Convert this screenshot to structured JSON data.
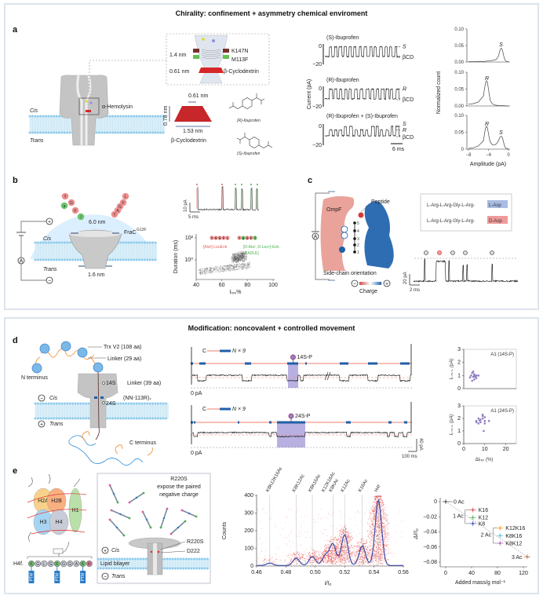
{
  "panel_top": {
    "title": "Chirality: confinement + asymmetry chemical enviroment"
  },
  "panel_bottom": {
    "title": "Modification: noncovalent + controlled movement"
  },
  "colors": {
    "pore_gray": "#b9b9b9",
    "membrane": "#d8eef8",
    "bead": "#8fcbec",
    "red": "#d62728",
    "blue_block": "#1f5fa8",
    "purple": "#9b8fd6",
    "trace_red_line": "#f07c6c"
  },
  "a": {
    "label": "a",
    "cis": "Cis",
    "trans": "Trans",
    "hemolysin": "α-Hemolysin",
    "inset": {
      "d1": "1.4 nm",
      "k147n": "K147N",
      "m113f": "M113F",
      "d2": "0.61 nm",
      "bcd": "β-Cyclodextrin"
    },
    "bcd": {
      "top": "0.61 nm",
      "height": "0.78 nm",
      "bottom": "1.53 nm",
      "name": "β-Cyclodextrin"
    },
    "r_ibu": "(R)-Ibuprofen",
    "s_ibu": "(S)-Ibuprofen",
    "traces": {
      "ylabel": "Current (pA)",
      "tick0": "0",
      "tick20": "−20",
      "scale": "6 ms",
      "rows": [
        {
          "title": "(S)-Ibuprofen",
          "levels": [
            "S",
            "βCD"
          ]
        },
        {
          "title": "(R)-Ibuprofen",
          "levels": [
            "R",
            "βCD"
          ]
        },
        {
          "title": "(R)-Ibuprofen + (S)-Ibuprofen",
          "levels": [
            "S",
            "R",
            "βCD"
          ]
        }
      ]
    }
  },
  "b": {
    "label": "b",
    "d_top": "6.0 nm",
    "d_bottom": "1.6 nm",
    "pore": "FraC",
    "pore_sup": "G13F",
    "cis": "Cis",
    "trans": "Trans",
    "plus": "+",
    "minus": "−",
    "ammeter": "A",
    "peptide_left": [
      "Y",
      "a",
      "G",
      "F",
      "l"
    ],
    "peptide_right": [
      "Y",
      "A",
      "G",
      "F",
      "L"
    ],
    "trace_scale_y": "10 pA",
    "trace_scale_x": "5 ms"
  },
  "c": {
    "label": "c",
    "ompf": "OmpF",
    "peptide": "Peptide",
    "side_chain": "Side-chain orientation",
    "charge": "Charge",
    "plus": "+",
    "minus": "−",
    "ammeter": "A",
    "chain_positions": [
      "1",
      "2",
      "3",
      "4",
      "5"
    ],
    "legend": {
      "prefix": "L-Arg-L-Arg-Gly-L-Arg-",
      "l_asp": "L-Asp",
      "d_asp": "D-Asp",
      "l_color": "#a9bde3",
      "d_color": "#ef9a9a"
    },
    "scale_y": "20 pA",
    "scale_x": "2 ms"
  },
  "d": {
    "label": "d",
    "trx": "Trx V2 (108 aa)",
    "linker29": "Linker (29 aa)",
    "n_term": "N terminus",
    "s14": "14S",
    "linker39": "Linker (39 aa)",
    "pore": "(NN-113R)₇",
    "s24": "24S",
    "cis": "Cis",
    "trans": "Trans",
    "plus": "+",
    "minus": "−",
    "c_term": "C terminus",
    "traces": [
      {
        "construct_c": "C",
        "construct_n": "N × 9",
        "site": "14S-P",
        "zero": "0 pA"
      },
      {
        "construct_c": "C",
        "construct_n": "N × 9",
        "site": "24S-P",
        "zero": "0 pA"
      }
    ],
    "scale_y": "40 pA",
    "scale_x": "100 ms"
  },
  "e": {
    "label": "e",
    "histones": [
      "H2A",
      "H2B",
      "H3",
      "H4",
      "H1"
    ],
    "h4f": "H4f.",
    "sequence": [
      "K",
      "G",
      "L",
      "G",
      "K",
      "G",
      "G",
      "A",
      "K",
      "R"
    ],
    "ptm": "PTM",
    "box_text": [
      "R220S",
      "expose the paired",
      "negative charge"
    ],
    "cis": "Cis",
    "trans": "Trans",
    "bilayer": "Lipid bilayer",
    "plus": "+",
    "minus": "−",
    "r220s": "R220S",
    "d222": "D222"
  },
  "chart_data": [
    {
      "id": "a-histograms",
      "type": "line",
      "xlabel": "Amplitude (pA)",
      "ylabel": "Normalized count",
      "xlim": [
        -8,
        0
      ],
      "xticks": [
        "−8",
        "−4",
        "0"
      ],
      "x": [
        -8,
        -7,
        -6,
        -5,
        -4.8,
        -4.6,
        -4.4,
        -4.2,
        -4,
        -3.8,
        -3.6,
        -3.2,
        -2.8,
        -2.4,
        -2,
        -1.8,
        -1.6,
        -1.4,
        -1.2,
        -1,
        -0.8,
        -0.6,
        -0.4,
        0
      ],
      "panels": [
        {
          "yticks": [
            "0.10",
            "0.05",
            "0.00"
          ],
          "ylim": [
            0,
            0.1
          ],
          "peaks": [
            {
              "label": "S",
              "x": -1.5
            }
          ],
          "values": [
            0.001,
            0.001,
            0.002,
            0.002,
            0.002,
            0.002,
            0.003,
            0.003,
            0.003,
            0.003,
            0.004,
            0.005,
            0.006,
            0.008,
            0.018,
            0.03,
            0.04,
            0.042,
            0.035,
            0.022,
            0.01,
            0.004,
            0.002,
            0.001
          ]
        },
        {
          "yticks": [
            "0.10",
            "0.05",
            "0.00"
          ],
          "ylim": [
            0,
            0.1
          ],
          "peaks": [
            {
              "label": "R",
              "x": -4.3
            }
          ],
          "values": [
            0.005,
            0.007,
            0.012,
            0.03,
            0.05,
            0.068,
            0.075,
            0.07,
            0.05,
            0.03,
            0.015,
            0.006,
            0.003,
            0.002,
            0.001,
            0.001,
            0.001,
            0.001,
            0.001,
            0.001,
            0.001,
            0,
            0,
            0
          ]
        },
        {
          "yticks": [
            "0.10",
            "0.05",
            "0"
          ],
          "ylim": [
            0,
            0.1
          ],
          "peaks": [
            {
              "label": "R",
              "x": -4.3
            },
            {
              "label": "S",
              "x": -1.5
            }
          ],
          "values": [
            0.002,
            0.004,
            0.01,
            0.025,
            0.045,
            0.062,
            0.068,
            0.063,
            0.046,
            0.03,
            0.02,
            0.013,
            0.012,
            0.016,
            0.025,
            0.032,
            0.037,
            0.038,
            0.033,
            0.022,
            0.01,
            0.004,
            0.002,
            0.001
          ]
        }
      ]
    },
    {
      "id": "b-scatter",
      "type": "scatter",
      "xlabel": "Iᵣₑₛ%",
      "ylabel": "Duration (ms)",
      "xlim": [
        40,
        100
      ],
      "xticks": [
        "40",
        "60",
        "80",
        "100"
      ],
      "yscale": "log",
      "yticks": [
        "10²",
        "10⁰"
      ],
      "clusters": [
        {
          "label": "[Ala²]-LeuEnk",
          "peptide": "YAGFL",
          "x": 71,
          "y": 1.5,
          "color": "#e06060"
        },
        {
          "label": "[D-Ala², D-Leu⁵]-Enk",
          "label2": "(DADLE)",
          "peptide": "YaGFl",
          "x": 76,
          "y": 2,
          "color": "#4caf50"
        }
      ]
    },
    {
      "id": "d-scatter",
      "type": "scatter",
      "xlabel": "ΔIᵣₑₛ (%)",
      "ylabel": "Iᵣ.ₘ.ₛ. (pA)",
      "xlim": [
        0,
        25
      ],
      "ylim": [
        0,
        3
      ],
      "xticks": [
        "0",
        "10",
        "20"
      ],
      "yticks": [
        "0",
        "1",
        "2",
        "3"
      ],
      "color": "#8e7cc3",
      "panels": [
        {
          "title": "A1 (14S-P)",
          "points": [
            [
              4,
              1.2
            ],
            [
              4.5,
              0.9
            ],
            [
              5,
              1.0
            ],
            [
              3,
              0.85
            ],
            [
              6,
              1.0
            ],
            [
              5,
              0.7
            ],
            [
              4,
              0.6
            ],
            [
              7,
              1.0
            ],
            [
              6,
              0.8
            ],
            [
              4.5,
              1.3
            ],
            [
              5,
              1.1
            ],
            [
              3.5,
              1.0
            ],
            [
              5.5,
              0.9
            ]
          ]
        },
        {
          "title": "A1 (24S-P)",
          "points": [
            [
              6,
              1.8
            ],
            [
              7,
              1.6
            ],
            [
              8,
              1.9
            ],
            [
              9,
              2.2
            ],
            [
              9,
              2.0
            ],
            [
              10,
              1.8
            ],
            [
              8,
              1.7
            ],
            [
              7,
              2.0
            ],
            [
              9.5,
              1.0
            ],
            [
              12,
              1.8
            ],
            [
              10,
              1.6
            ],
            [
              6,
              1.7
            ],
            [
              9,
              2.3
            ],
            [
              7.5,
              1.85
            ],
            [
              10,
              2.1
            ]
          ]
        }
      ]
    },
    {
      "id": "e-histogram",
      "type": "line",
      "xlabel": "I/I₀",
      "ylabel": "Counts",
      "xlim": [
        0.46,
        0.56
      ],
      "ylim": [
        0,
        400
      ],
      "xticks": [
        "0.46",
        "0.48",
        "0.50",
        "0.52",
        "0.54",
        "0.56"
      ],
      "yticks": [
        "0",
        "100",
        "200",
        "300",
        "400"
      ],
      "peaks": [
        {
          "label": "K8K12K16Ac",
          "x": 0.469,
          "counts": 15
        },
        {
          "label": "K8K12Ac",
          "x": 0.487,
          "counts": 45
        },
        {
          "label": "K8K16Ac",
          "x": 0.498,
          "counts": 55
        },
        {
          "label": "K12K16Ac",
          "x": 0.507,
          "counts": 60
        },
        {
          "label": "K8KAc",
          "x": 0.512,
          "counts": 130
        },
        {
          "label": "K12Ac",
          "x": 0.52,
          "counts": 190
        },
        {
          "label": "K16Ac",
          "x": 0.532,
          "counts": 120
        },
        {
          "label": "H4f",
          "x": 0.543,
          "counts": 400
        }
      ]
    },
    {
      "id": "e-mass-shift",
      "type": "scatter",
      "xlabel": "Added mass/g mol⁻¹",
      "ylabel": "ΔI/I₀",
      "xlim": [
        -5,
        135
      ],
      "ylim": [
        -0.085,
        0.003
      ],
      "xticks": [
        "0",
        "40",
        "80",
        "120"
      ],
      "yticks": [
        "0",
        "−0.02",
        "−0.04",
        "−0.06",
        "−0.08"
      ],
      "groups": [
        "0 Ac",
        "1 Ac",
        "2 Ac",
        "3 Ac"
      ],
      "points": [
        {
          "label": "0 Ac",
          "x": 0,
          "y": 0,
          "color": "#555555"
        },
        {
          "label": "K16",
          "x": 42,
          "y": -0.011,
          "color": "#e05050"
        },
        {
          "label": "K12",
          "x": 42,
          "y": -0.021,
          "color": "#5cb85c"
        },
        {
          "label": "K8",
          "x": 42,
          "y": -0.029,
          "color": "#3f51b5"
        },
        {
          "label": "K12K16",
          "x": 84,
          "y": -0.035,
          "color": "#f0a030"
        },
        {
          "label": "K8K16",
          "x": 84,
          "y": -0.045,
          "color": "#5bc0de"
        },
        {
          "label": "K8K12",
          "x": 84,
          "y": -0.055,
          "color": "#b05fb0"
        },
        {
          "label": "3 Ac",
          "x": 126,
          "y": -0.073,
          "color": "#c8784a"
        }
      ]
    }
  ]
}
